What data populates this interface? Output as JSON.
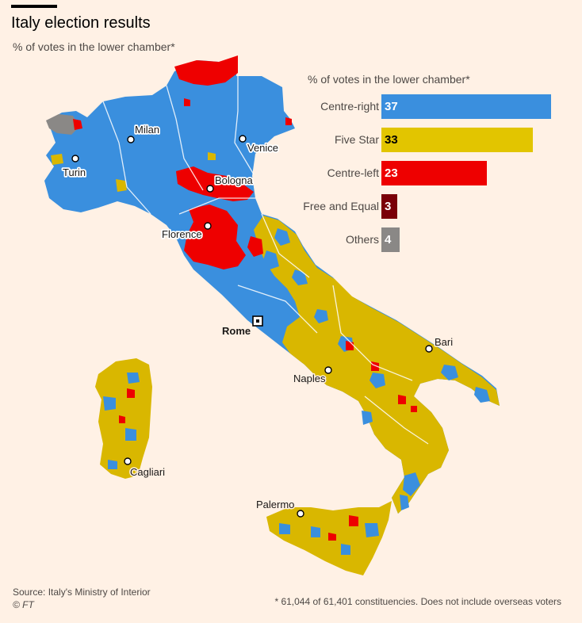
{
  "header": {
    "title": "Italy election results",
    "subtitle": "% of votes in the lower chamber*"
  },
  "legend_chart": {
    "title": "% of votes in the lower chamber*",
    "type": "bar",
    "categories": [
      "Centre-right",
      "Five Star",
      "Centre-left",
      "Free and Equal",
      "Others"
    ],
    "values": [
      37,
      33,
      23,
      3,
      4
    ],
    "value_labels": [
      "37",
      "33",
      "23",
      "3",
      "4"
    ],
    "colors": [
      "#3a8fde",
      "#e2c500",
      "#ee0000",
      "#7a0008",
      "#8a8886"
    ],
    "xlim": [
      0,
      37
    ]
  },
  "map": {
    "region": "Italy",
    "colors": {
      "centre_right": "#3a8fde",
      "five_star": "#d9b700",
      "centre_left": "#ee0000",
      "others": "#8a8886",
      "borders": "#ffffff"
    },
    "cities": [
      {
        "name": "Milan"
      },
      {
        "name": "Venice"
      },
      {
        "name": "Turin"
      },
      {
        "name": "Bologna"
      },
      {
        "name": "Florence"
      },
      {
        "name": "Rome",
        "capital": true
      },
      {
        "name": "Bari"
      },
      {
        "name": "Naples"
      },
      {
        "name": "Cagliari"
      },
      {
        "name": "Palermo"
      }
    ]
  },
  "footer": {
    "source": "Source: Italy's Ministry of Interior",
    "copyright": "© FT",
    "footnote": "* 61,044 of 61,401 constituencies. Does not include overseas voters"
  }
}
